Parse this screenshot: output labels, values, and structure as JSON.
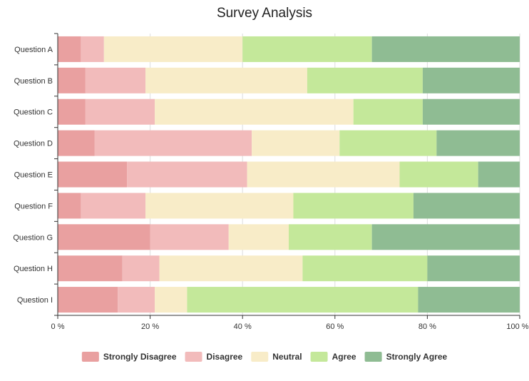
{
  "chart_data": {
    "type": "bar",
    "orientation": "horizontal",
    "stacked": true,
    "normalized_percent": true,
    "title": "Survey Analysis",
    "xlabel": "",
    "ylabel": "",
    "xlim": [
      0,
      100
    ],
    "x_ticks": [
      0,
      20,
      40,
      60,
      80,
      100
    ],
    "x_tick_labels": [
      "0 %",
      "20 %",
      "40 %",
      "60 %",
      "80 %",
      "100 %"
    ],
    "grid": true,
    "legend_position": "bottom",
    "categories": [
      "Question A",
      "Question B",
      "Question C",
      "Question D",
      "Question E",
      "Question F",
      "Question G",
      "Question H",
      "Question I"
    ],
    "series": [
      {
        "name": "Strongly Disagree",
        "color": "#E9A0A0",
        "values": [
          5,
          6,
          6,
          8,
          15,
          5,
          20,
          14,
          13
        ]
      },
      {
        "name": "Disagree",
        "color": "#F2BBBB",
        "values": [
          5,
          13,
          15,
          34,
          26,
          14,
          17,
          8,
          8
        ]
      },
      {
        "name": "Neutral",
        "color": "#F8ECC8",
        "values": [
          30,
          35,
          43,
          19,
          33,
          32,
          13,
          31,
          7
        ]
      },
      {
        "name": "Agree",
        "color": "#C4E89A",
        "values": [
          28,
          25,
          15,
          21,
          17,
          26,
          18,
          27,
          50
        ]
      },
      {
        "name": "Strongly Agree",
        "color": "#8FBC93",
        "values": [
          32,
          21,
          21,
          18,
          9,
          23,
          32,
          20,
          22
        ]
      }
    ]
  }
}
